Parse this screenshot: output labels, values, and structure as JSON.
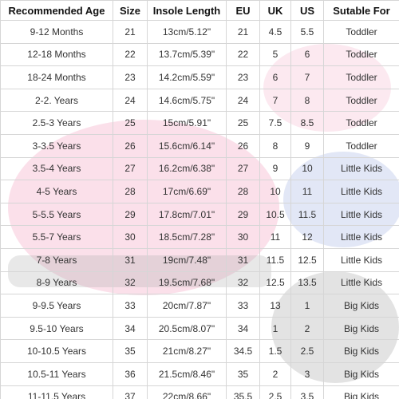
{
  "table": {
    "header": [
      "Recommended Age",
      "Size",
      "Insole Length",
      "EU",
      "UK",
      "US",
      "Sutable For"
    ],
    "rows": [
      [
        "9-12 Months",
        "21",
        "13cm/5.12\"",
        "21",
        "4.5",
        "5.5",
        "Toddler"
      ],
      [
        "12-18 Months",
        "22",
        "13.7cm/5.39\"",
        "22",
        "5",
        "6",
        "Toddler"
      ],
      [
        "18-24 Months",
        "23",
        "14.2cm/5.59\"",
        "23",
        "6",
        "7",
        "Toddler"
      ],
      [
        "2-2. Years",
        "24",
        "14.6cm/5.75\"",
        "24",
        "7",
        "8",
        "Toddler"
      ],
      [
        "2.5-3 Years",
        "25",
        "15cm/5.91\"",
        "25",
        "7.5",
        "8.5",
        "Toddler"
      ],
      [
        "3-3.5 Years",
        "26",
        "15.6cm/6.14\"",
        "26",
        "8",
        "9",
        "Toddler"
      ],
      [
        "3.5-4 Years",
        "27",
        "16.2cm/6.38\"",
        "27",
        "9",
        "10",
        "Little Kids"
      ],
      [
        "4-5 Years",
        "28",
        "17cm/6.69\"",
        "28",
        "10",
        "11",
        "Little Kids"
      ],
      [
        "5-5.5 Years",
        "29",
        "17.8cm/7.01\"",
        "29",
        "10.5",
        "11.5",
        "Little Kids"
      ],
      [
        "5.5-7 Years",
        "30",
        "18.5cm/7.28\"",
        "30",
        "11",
        "12",
        "Little Kids"
      ],
      [
        "7-8 Years",
        "31",
        "19cm/7.48\"",
        "31",
        "11.5",
        "12.5",
        "Little Kids"
      ],
      [
        "8-9 Years",
        "32",
        "19.5cm/7.68\"",
        "32",
        "12.5",
        "13.5",
        "Little Kids"
      ],
      [
        "9-9.5 Years",
        "33",
        "20cm/7.87\"",
        "33",
        "13",
        "1",
        "Big Kids"
      ],
      [
        "9.5-10 Years",
        "34",
        "20.5cm/8.07\"",
        "34",
        "1",
        "2",
        "Big Kids"
      ],
      [
        "10-10.5 Years",
        "35",
        "21cm/8.27\"",
        "34.5",
        "1.5",
        "2.5",
        "Big Kids"
      ],
      [
        "10.5-11 Years",
        "36",
        "21.5cm/8.46\"",
        "35",
        "2",
        "3",
        "Big Kids"
      ],
      [
        "11-11.5 Years",
        "37",
        "22cm/8.66\"",
        "35.5",
        "2.5",
        "3.5",
        "Big Kids"
      ]
    ]
  }
}
